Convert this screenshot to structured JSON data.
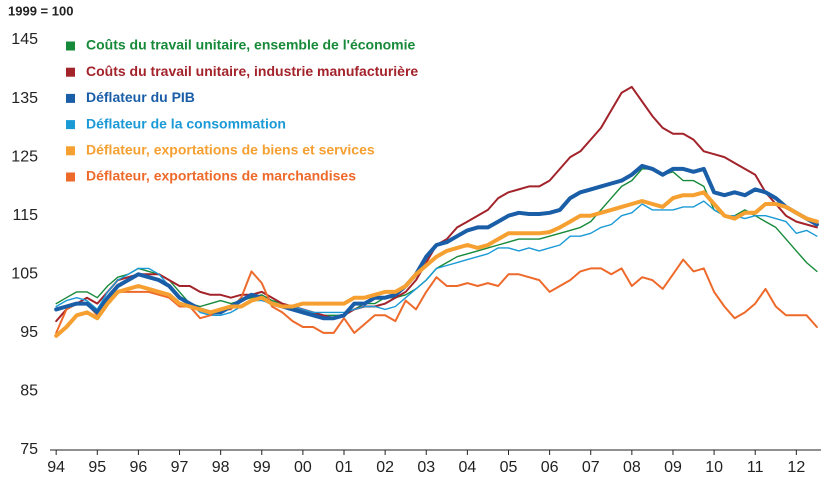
{
  "chart_data": {
    "type": "line",
    "title": "1999 = 100",
    "x": [
      1994,
      1994.25,
      1994.5,
      1994.75,
      1995,
      1995.25,
      1995.5,
      1995.75,
      1996,
      1996.25,
      1996.5,
      1996.75,
      1997,
      1997.25,
      1997.5,
      1997.75,
      1998,
      1998.25,
      1998.5,
      1998.75,
      1999,
      1999.25,
      1999.5,
      1999.75,
      2000,
      2000.25,
      2000.5,
      2000.75,
      2001,
      2001.25,
      2001.5,
      2001.75,
      2002,
      2002.25,
      2002.5,
      2002.75,
      2003,
      2003.25,
      2003.5,
      2003.75,
      2004,
      2004.25,
      2004.5,
      2004.75,
      2005,
      2005.25,
      2005.5,
      2005.75,
      2006,
      2006.25,
      2006.5,
      2006.75,
      2007,
      2007.25,
      2007.5,
      2007.75,
      2008,
      2008.25,
      2008.5,
      2008.75,
      2009,
      2009.25,
      2009.5,
      2009.75,
      2010,
      2010.25,
      2010.5,
      2010.75,
      2011,
      2011.25,
      2011.5,
      2011.75,
      2012,
      2012.25,
      2012.5
    ],
    "series": [
      {
        "name": "Coûts du travail unitaire, ensemble de l'économie",
        "color": "#178a3a",
        "values": [
          100,
          101,
          102,
          102,
          101,
          103,
          104.5,
          105,
          106,
          105.5,
          105,
          104,
          102,
          100,
          99.5,
          100,
          100.5,
          100,
          100.5,
          101,
          101.5,
          100.5,
          100,
          99.5,
          99,
          98.5,
          98,
          98,
          98,
          99,
          100,
          100,
          101,
          101,
          101.5,
          102.5,
          104,
          106,
          107,
          108,
          108.5,
          109,
          109.5,
          110,
          110.5,
          111,
          111,
          111,
          111.5,
          112,
          112.5,
          113,
          114,
          116,
          118,
          120,
          121,
          123,
          123,
          122,
          122.5,
          121,
          121,
          120,
          116,
          115,
          115,
          116,
          115,
          114,
          113,
          111,
          109,
          107,
          105.5
        ]
      },
      {
        "name": "Coûts du travail unitaire, industrie manufacturière",
        "color": "#a3232b",
        "values": [
          97,
          99,
          100,
          101,
          100,
          102,
          104,
          104.5,
          105,
          105,
          105,
          104,
          103,
          103,
          102,
          101.5,
          101.5,
          101,
          101.5,
          101.5,
          102,
          101,
          100,
          99.5,
          99,
          98.5,
          98,
          97.5,
          98,
          99,
          99.5,
          99.5,
          100,
          101,
          102,
          104,
          107,
          110,
          111,
          113,
          114,
          115,
          116,
          118,
          119,
          119.5,
          120,
          120,
          121,
          123,
          125,
          126,
          128,
          130,
          133,
          136,
          137,
          134.5,
          132,
          130,
          129,
          129,
          128,
          126,
          125.5,
          125,
          124,
          123,
          122,
          119,
          117,
          115,
          114,
          113.5,
          113
        ]
      },
      {
        "name": "Déflateur du PIB",
        "color": "#1a5ea8",
        "values": [
          99,
          99.5,
          100,
          100,
          98.5,
          101,
          103,
          104,
          105,
          104.5,
          104,
          103,
          101,
          100,
          99,
          98.5,
          98.5,
          99.5,
          100.5,
          101.5,
          101,
          100,
          99.5,
          99,
          98.5,
          98,
          97.5,
          97.5,
          98,
          100,
          100,
          101,
          101,
          101.5,
          103,
          105,
          108,
          110,
          110.5,
          111.5,
          112.5,
          113,
          113,
          114,
          115,
          115.5,
          115.3,
          115.3,
          115.5,
          116,
          118,
          119,
          119.5,
          120,
          120.5,
          121,
          122,
          123.5,
          123,
          122,
          123,
          123,
          122.5,
          123,
          119,
          118.5,
          119,
          118.5,
          119.5,
          119,
          118,
          116.5,
          115.5,
          114.5,
          113.5
        ]
      },
      {
        "name": "Déflateur de la consommation",
        "color": "#1b9ad6",
        "values": [
          99.5,
          100.5,
          101,
          100.5,
          99,
          102,
          104,
          105,
          106,
          106,
          105,
          103,
          101,
          100,
          98.5,
          98,
          98,
          98.5,
          99.5,
          100.5,
          100.5,
          100,
          99.5,
          99.5,
          99,
          98.5,
          98.5,
          98.5,
          98.5,
          99,
          99.5,
          99.5,
          99,
          99.5,
          101,
          102.5,
          104,
          106,
          106.5,
          107,
          107.5,
          108,
          108.5,
          109.5,
          109.5,
          109,
          109.5,
          109,
          109.5,
          110,
          111.5,
          111.5,
          112,
          113,
          113.5,
          115,
          115.5,
          117,
          116,
          116,
          116,
          116.5,
          116.5,
          117.5,
          116,
          115,
          115,
          114.5,
          115,
          115,
          114.5,
          114,
          112,
          112.5,
          111.5
        ]
      },
      {
        "name": "Déflateur, exportations de biens et services",
        "color": "#f5a031",
        "values": [
          94.5,
          96,
          98,
          98.5,
          97.5,
          100,
          102,
          102.5,
          103,
          102.5,
          102,
          101.5,
          100,
          99.5,
          99,
          98.5,
          99,
          99.5,
          99.5,
          100.5,
          101,
          100,
          99.5,
          99.5,
          100,
          100,
          100,
          100,
          100,
          101,
          101,
          101.5,
          102,
          102,
          103,
          105,
          106.5,
          108,
          109,
          109.5,
          110,
          109.5,
          110,
          111,
          112,
          112,
          112,
          112,
          112.2,
          113,
          114,
          115,
          115,
          115.5,
          116,
          116.5,
          117,
          117.5,
          117,
          116.5,
          118,
          118.5,
          118.5,
          119,
          117,
          115,
          114.5,
          115.5,
          115.5,
          117,
          117,
          116.5,
          115.5,
          114.5,
          114
        ]
      },
      {
        "name": "Déflateur, exportations de marchandises",
        "color": "#ee6a2b",
        "values": [
          95,
          99,
          100,
          100,
          98,
          101,
          102,
          102,
          102,
          102,
          101.5,
          101,
          99.5,
          99.5,
          97.5,
          98,
          99,
          99,
          101,
          105.5,
          103.5,
          99.5,
          98.5,
          97,
          96,
          96,
          95,
          95,
          97.5,
          95,
          96.5,
          98,
          98,
          97,
          100.5,
          99,
          102,
          104.5,
          103,
          103,
          103.5,
          103,
          103.5,
          103,
          105,
          105,
          104.5,
          104,
          102,
          103,
          104,
          105.5,
          106,
          106,
          105,
          106,
          103,
          104.5,
          104,
          102.5,
          105,
          107.5,
          105.5,
          106,
          102,
          99.5,
          97.5,
          98.5,
          100,
          102.5,
          99.5,
          98,
          98,
          98,
          96
        ]
      }
    ],
    "xlim": [
      1993.85,
      2012.6
    ],
    "xticks": [
      {
        "value": 1994,
        "label": "94"
      },
      {
        "value": 1995,
        "label": "95"
      },
      {
        "value": 1996,
        "label": "96"
      },
      {
        "value": 1997,
        "label": "97"
      },
      {
        "value": 1998,
        "label": "98"
      },
      {
        "value": 1999,
        "label": "99"
      },
      {
        "value": 2000,
        "label": "00"
      },
      {
        "value": 2001,
        "label": "01"
      },
      {
        "value": 2002,
        "label": "02"
      },
      {
        "value": 2003,
        "label": "03"
      },
      {
        "value": 2004,
        "label": "04"
      },
      {
        "value": 2005,
        "label": "05"
      },
      {
        "value": 2006,
        "label": "06"
      },
      {
        "value": 2007,
        "label": "07"
      },
      {
        "value": 2008,
        "label": "08"
      },
      {
        "value": 2009,
        "label": "09"
      },
      {
        "value": 2010,
        "label": "10"
      },
      {
        "value": 2011,
        "label": "11"
      },
      {
        "value": 2012,
        "label": "12"
      }
    ],
    "ylim": [
      75,
      145
    ],
    "yticks": [
      75,
      85,
      95,
      105,
      115,
      125,
      135,
      145
    ]
  }
}
